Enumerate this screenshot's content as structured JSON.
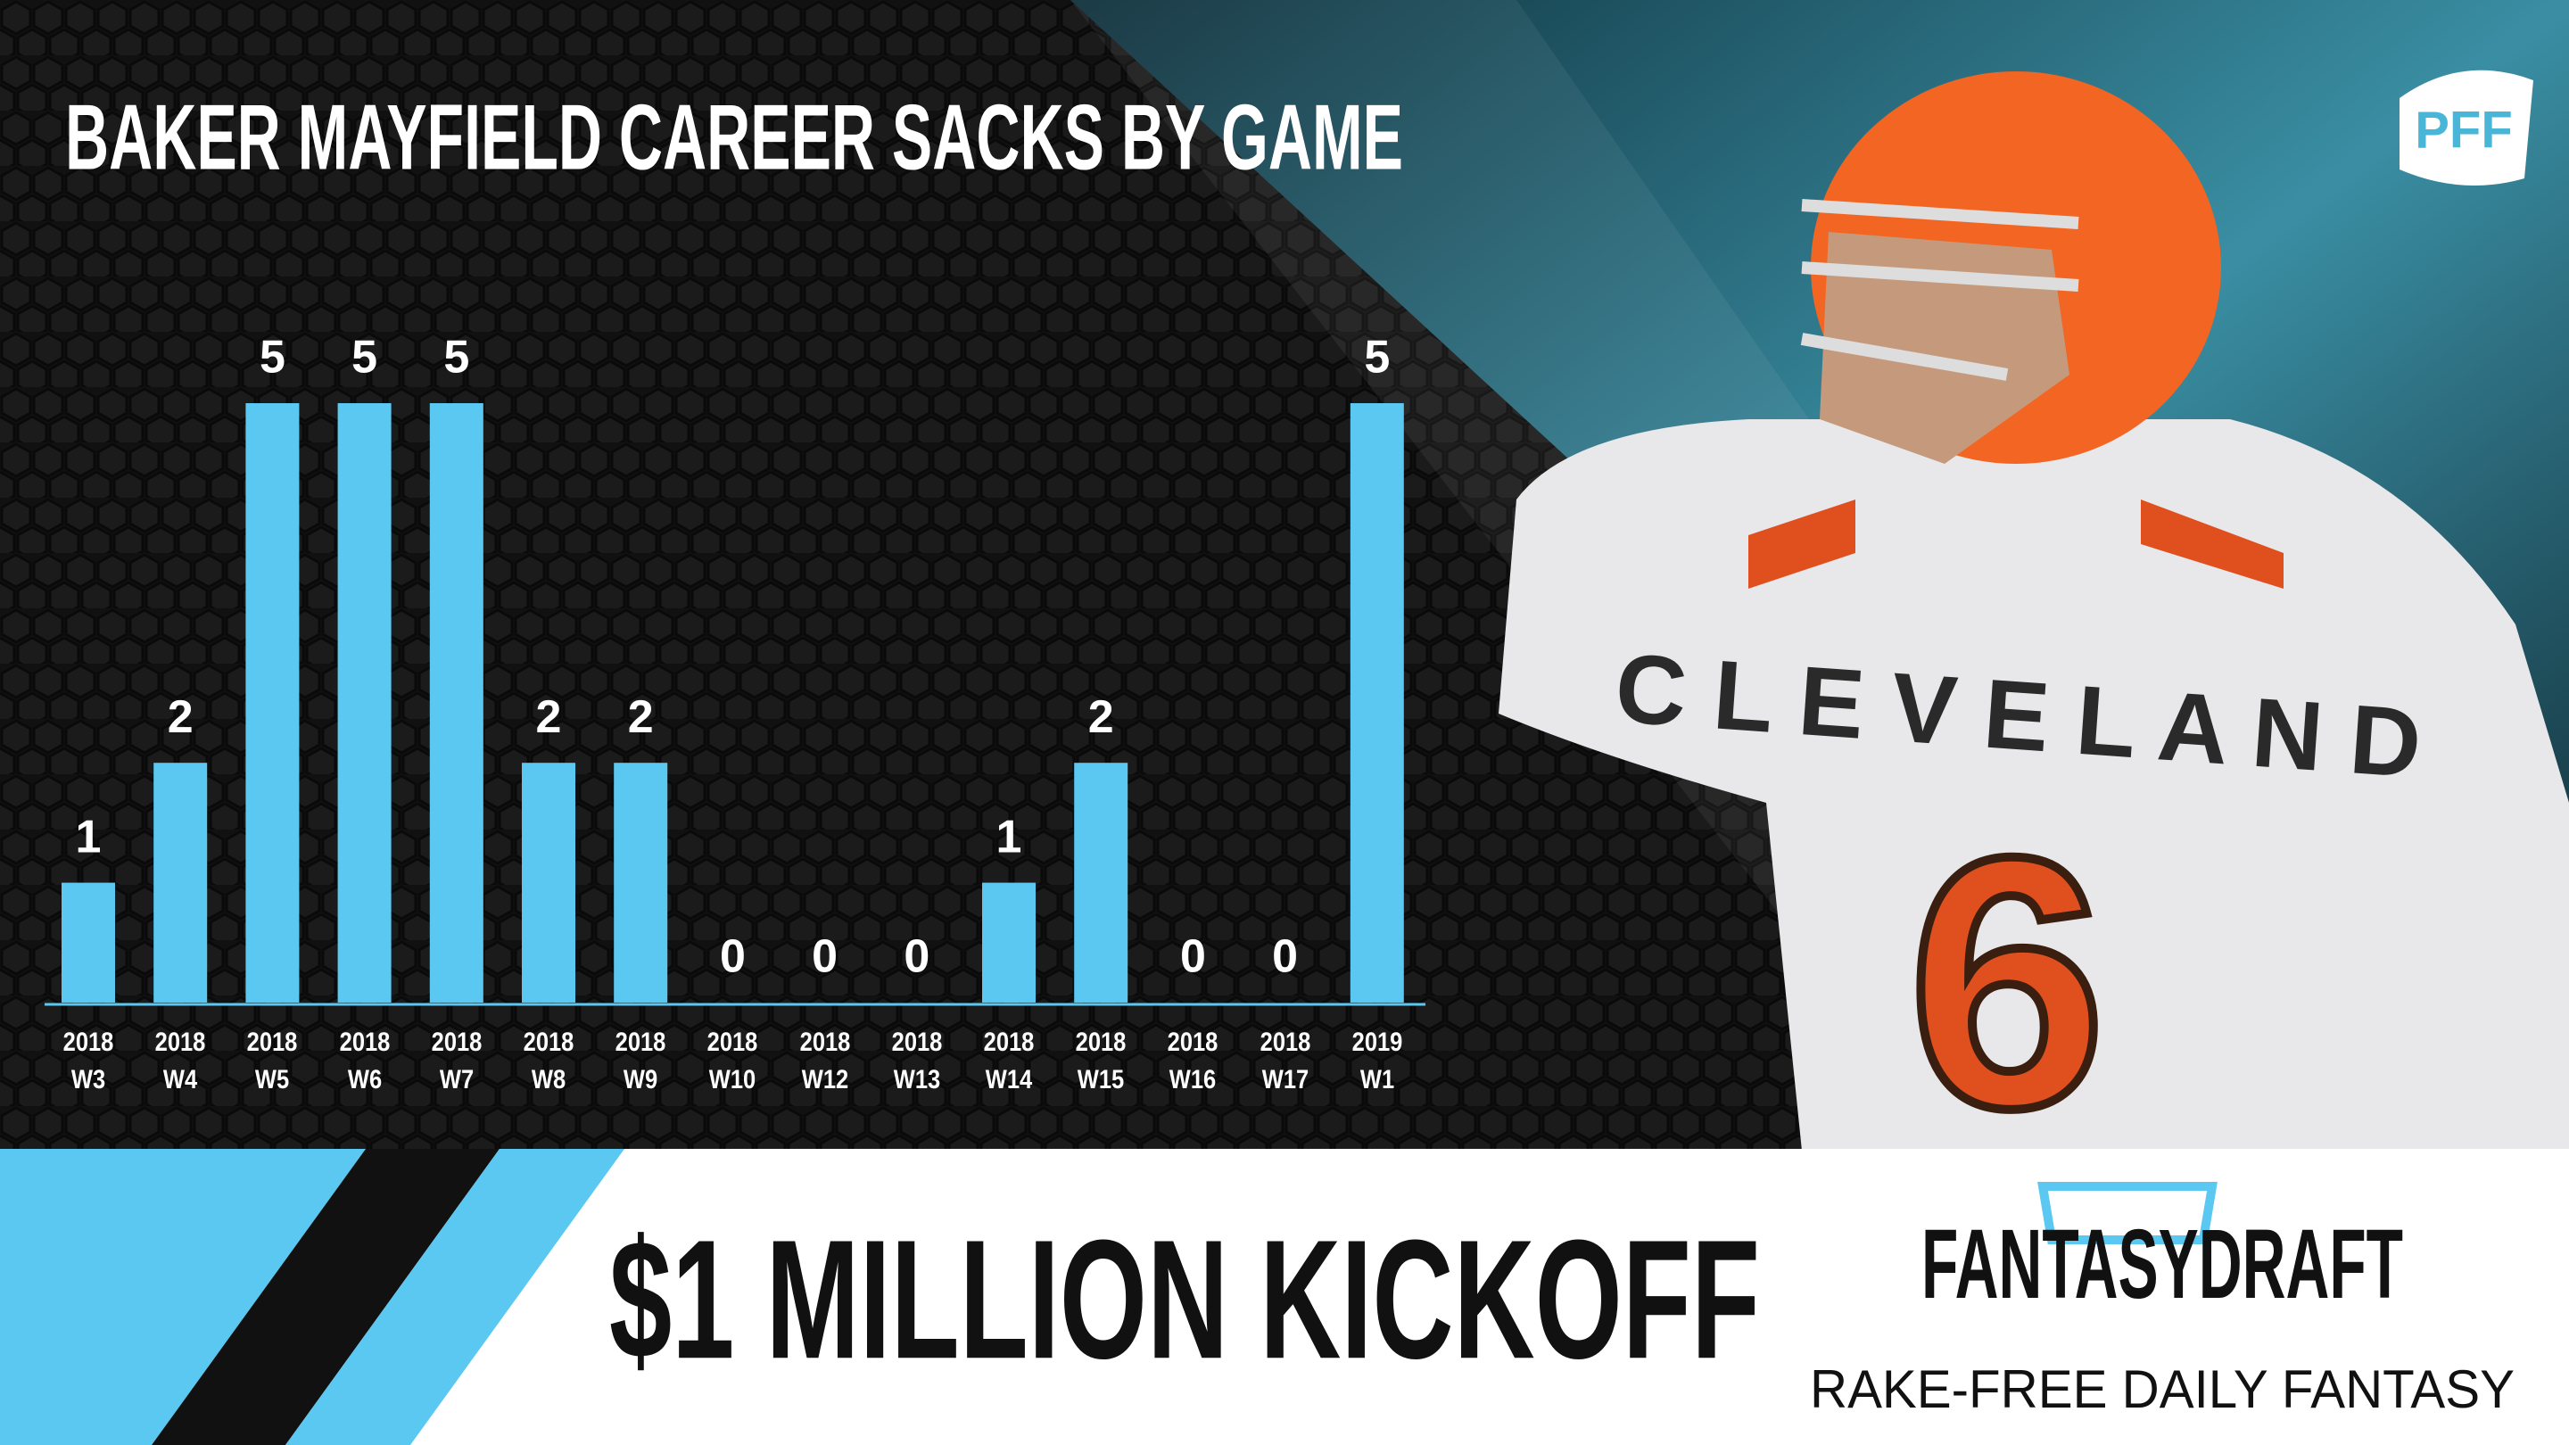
{
  "chart_data": {
    "type": "bar",
    "title": "BAKER MAYFIELD CAREER SACKS BY GAME",
    "categories": [
      "2018 W3",
      "2018 W4",
      "2018 W5",
      "2018 W6",
      "2018 W7",
      "2018 W8",
      "2018 W9",
      "2018 W10",
      "2018 W12",
      "2018 W13",
      "2018 W14",
      "2018 W15",
      "2018 W16",
      "2018 W17",
      "2019 W1"
    ],
    "values": [
      1,
      2,
      5,
      5,
      5,
      2,
      2,
      0,
      0,
      0,
      1,
      2,
      0,
      0,
      5
    ],
    "color": "#5bc8f2"
  },
  "logo": "PFF",
  "banner": {
    "headline": "$1 MILLION KICKOFF",
    "brand": "FANTASYDRAFT",
    "tagline": "RAKE-FREE DAILY FANTASY"
  }
}
